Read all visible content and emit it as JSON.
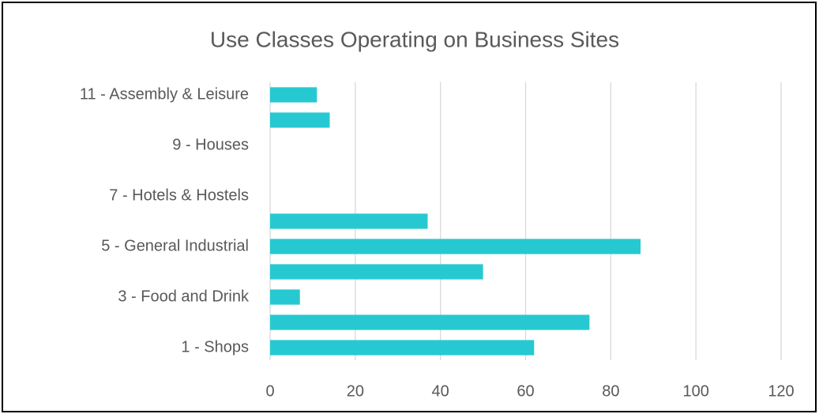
{
  "chart_data": {
    "type": "hbar",
    "title": "Use Classes Operating on Business Sites",
    "categories": [
      "1 - Shops",
      null,
      "3 - Food and Drink",
      null,
      "5 - General Industrial",
      null,
      "7 - Hotels & Hostels",
      null,
      "9 - Houses",
      null,
      "11 - Assembly & Leisure"
    ],
    "values": [
      62,
      75,
      7,
      50,
      87,
      37,
      0,
      0,
      0,
      14,
      11
    ],
    "color": "#26c9d1",
    "xlim": [
      0,
      120
    ],
    "xticks": [
      0,
      20,
      40,
      60,
      80,
      100,
      120
    ],
    "grid": true
  }
}
